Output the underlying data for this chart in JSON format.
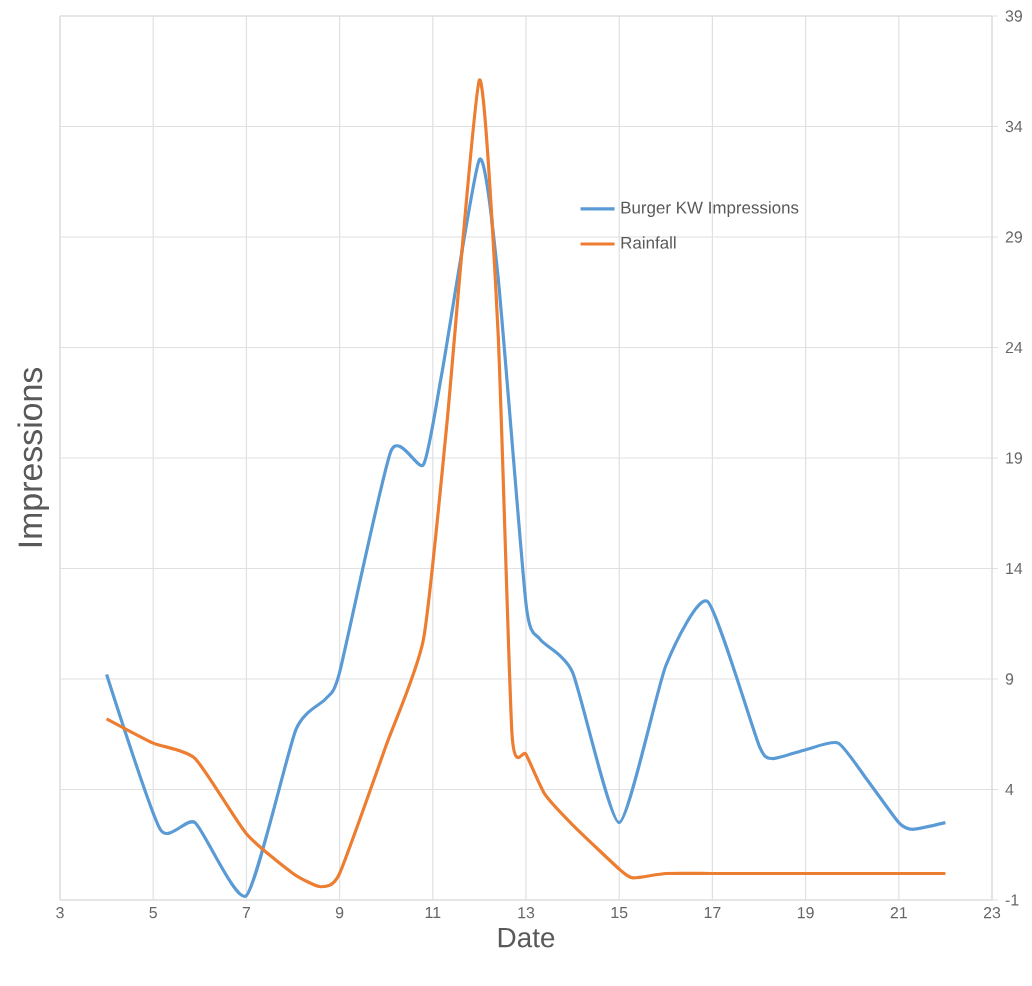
{
  "chart_data": {
    "type": "line",
    "xlabel": "Date",
    "ylabel": "Impressions",
    "xlim": [
      3,
      23
    ],
    "xticks": [
      3,
      5,
      7,
      9,
      11,
      13,
      15,
      17,
      19,
      21,
      23
    ],
    "ylim": [
      -1,
      39
    ],
    "yticks": [
      -1,
      4,
      9,
      14,
      19,
      24,
      29,
      34,
      39
    ],
    "grid": true,
    "legend": "top right",
    "marker": "none",
    "line_style": "solid",
    "series": [
      {
        "name": "Burger KW Impressions",
        "color": "#5b9bd5",
        "x": [
          4,
          5.15,
          5.9,
          7,
          8.06,
          8.7,
          9,
          10.1,
          10.8,
          11.2,
          12,
          12.4,
          13,
          13.3,
          14,
          15,
          16,
          16.9,
          18,
          18.3,
          19,
          19.7,
          20.3,
          21,
          21.3,
          22
        ],
        "values": [
          9.2,
          2.2,
          2.5,
          -0.8,
          6.7,
          8.1,
          9.3,
          19.3,
          18.7,
          22.9,
          32.5,
          27.2,
          12.4,
          10.8,
          9.3,
          2.5,
          9.6,
          12.5,
          6.0,
          5.4,
          5.8,
          6.1,
          4.5,
          2.5,
          2.2,
          2.5
        ]
      },
      {
        "name": "Rainfall",
        "color": "#ed7d31",
        "x": [
          4,
          5,
          5.9,
          7,
          8,
          8.6,
          9,
          10,
          10.8,
          11.3,
          12,
          12.4,
          12.7,
          13,
          13.4,
          14,
          15,
          15.3,
          16,
          17,
          18,
          19,
          20,
          21,
          22
        ],
        "values": [
          7.2,
          6.1,
          5.4,
          2.0,
          0.2,
          -0.4,
          0.2,
          6.0,
          10.8,
          20.5,
          36.1,
          24.7,
          6.5,
          5.6,
          3.8,
          2.4,
          0.4,
          0.0,
          0.2,
          0.2,
          0.2,
          0.2,
          0.2,
          0.2,
          0.2
        ]
      }
    ]
  }
}
